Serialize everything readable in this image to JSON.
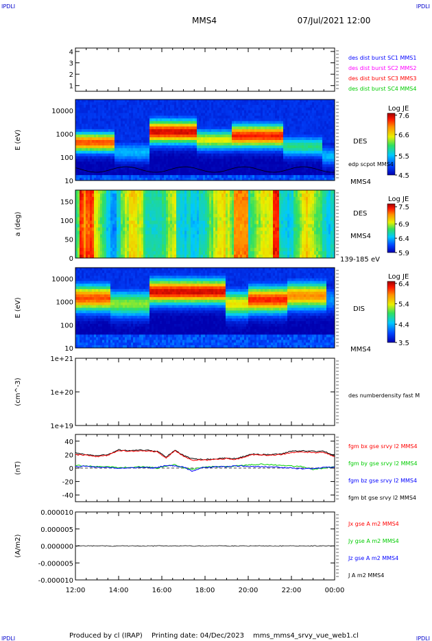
{
  "header": {
    "corner_tl": "IPDLI",
    "corner_tr": "IPDLI",
    "corner_bl": "IPDLI",
    "corner_br": "IPDLI",
    "title": "MMS4",
    "datetime": "07/Jul/2021 12:00"
  },
  "footer": {
    "produced_by": "Produced by cl (IRAP)",
    "printing_date": "Printing date: 04/Dec/2023",
    "filename": "mms_mms4_srvy_vue_web1.cl"
  },
  "colors": {
    "mms1": "#0000ff",
    "mms2": "#ff00ff",
    "mms3": "#ff0000",
    "mms4": "#00cc00",
    "bx": "#ff0000",
    "by": "#00cc00",
    "bz": "#0000ff",
    "bt": "#000000"
  },
  "x_axis": {
    "ticks": [
      "12:00",
      "14:00",
      "16:00",
      "18:00",
      "20:00",
      "22:00",
      "00:00"
    ]
  },
  "chart_data": [
    {
      "type": "scatter",
      "panel": "burst",
      "ylabel": "",
      "ylim": [
        0.5,
        4.3
      ],
      "yticks": [
        "4",
        "3",
        "2",
        "1"
      ],
      "legend": [
        {
          "label": "des dist burst SC1 MMS1",
          "color": "#0000ff"
        },
        {
          "label": "des dist burst SC2 MMS2",
          "color": "#ff00ff"
        },
        {
          "label": "des dist burst SC3 MMS3",
          "color": "#ff0000"
        },
        {
          "label": "des dist burst SC4 MMS4",
          "color": "#00cc00"
        }
      ]
    },
    {
      "type": "heatmap",
      "panel": "des_energy",
      "ylabel": "E (eV)",
      "yscale": "log",
      "ylim": [
        10,
        30000
      ],
      "yticks": [
        "10000",
        "1000",
        "100",
        "10"
      ],
      "right_labels": [
        "DES",
        "edp scpot MMS4",
        "MMS4"
      ],
      "colorbar": {
        "title": "Log JE",
        "ticks": [
          "7.6",
          "6.6",
          "5.5",
          "4.5"
        ],
        "range": [
          4.5,
          7.7
        ]
      }
    },
    {
      "type": "heatmap",
      "panel": "des_pitch",
      "ylabel": "a (deg)",
      "ylim": [
        0,
        180
      ],
      "yticks": [
        "150",
        "100",
        "50",
        "0"
      ],
      "right_labels": [
        "DES",
        "MMS4",
        "139-185 eV"
      ],
      "colorbar": {
        "title": "Log JE",
        "ticks": [
          "7.5",
          "6.9",
          "6.4",
          "5.9"
        ],
        "range": [
          5.9,
          7.6
        ]
      }
    },
    {
      "type": "heatmap",
      "panel": "dis_energy",
      "ylabel": "E (eV)",
      "yscale": "log",
      "ylim": [
        10,
        30000
      ],
      "yticks": [
        "10000",
        "1000",
        "100",
        "10"
      ],
      "right_labels": [
        "DIS",
        "MMS4"
      ],
      "colorbar": {
        "title": "Log JE",
        "ticks": [
          "6.4",
          "5.4",
          "4.4",
          "3.5"
        ],
        "range": [
          3.5,
          6.5
        ]
      }
    },
    {
      "type": "line",
      "panel": "density",
      "ylabel": "(cm^-3)",
      "yscale": "log",
      "ylim": [
        1e+19,
        1e+21
      ],
      "yticks": [
        "1e+21",
        "1e+20",
        "1e+19"
      ],
      "legend": [
        {
          "label": "des numberdensity fast M",
          "color": "#000000"
        }
      ]
    },
    {
      "type": "line",
      "panel": "bfield",
      "ylabel": "(nT)",
      "ylim": [
        -50,
        50
      ],
      "yticks": [
        "40",
        "20",
        "0",
        "-20",
        "-40"
      ],
      "legend": [
        {
          "label": "fgm bx gse srvy l2 MMS4",
          "color": "#ff0000"
        },
        {
          "label": "fgm by gse srvy l2 MMS4",
          "color": "#00cc00"
        },
        {
          "label": "fgm bz gse srvy l2 MMS4",
          "color": "#0000ff"
        },
        {
          "label": "fgm bt gse srvy l2 MMS4",
          "color": "#000000"
        }
      ],
      "x": [
        12.0,
        12.5,
        13.0,
        13.5,
        14.0,
        14.5,
        15.0,
        15.5,
        15.8,
        16.2,
        16.6,
        17.0,
        17.4,
        17.8,
        18.2,
        18.6,
        19.0,
        19.4,
        19.8,
        20.2,
        20.6,
        21.0,
        21.5,
        22.0,
        22.5,
        23.0,
        23.5,
        24.0
      ],
      "series": [
        {
          "name": "fgm bt gse srvy l2 MMS4",
          "values": [
            23,
            20,
            18,
            20,
            27,
            26,
            27,
            26,
            25,
            16,
            27,
            19,
            14,
            13,
            13,
            14,
            15,
            14,
            17,
            21,
            20,
            20,
            21,
            25,
            26,
            25,
            25,
            18
          ]
        },
        {
          "name": "fgm bx gse srvy l2 MMS4",
          "values": [
            20,
            19,
            17,
            19,
            26,
            25,
            26,
            25,
            24,
            15,
            26,
            18,
            12,
            12,
            12,
            13,
            14,
            13,
            16,
            20,
            19,
            19,
            20,
            23,
            24,
            23,
            23,
            17
          ]
        },
        {
          "name": "fgm by gse srvy l2 MMS4",
          "values": [
            4,
            3,
            2,
            2,
            1,
            1,
            2,
            1,
            0,
            3,
            5,
            0,
            -2,
            1,
            2,
            2,
            2,
            3,
            4,
            5,
            6,
            5,
            4,
            3,
            2,
            -2,
            0,
            2
          ]
        },
        {
          "name": "fgm bz gse srvy l2 MMS4",
          "values": [
            2,
            3,
            1,
            1,
            0,
            0,
            1,
            0,
            1,
            4,
            3,
            2,
            -5,
            0,
            1,
            2,
            2,
            3,
            3,
            2,
            2,
            2,
            1,
            0,
            -1,
            -1,
            1,
            2
          ]
        }
      ]
    },
    {
      "type": "line",
      "panel": "current",
      "ylabel": "(A/m2)",
      "ylim": [
        -1e-05,
        1e-05
      ],
      "yticks": [
        "0.000010",
        "0.000005",
        "0.000000",
        "-0.000005",
        "-0.000010"
      ],
      "legend": [
        {
          "label": "Jx gse A m2 MMS4",
          "color": "#ff0000"
        },
        {
          "label": "Jy gse A m2 MMS4",
          "color": "#00cc00"
        },
        {
          "label": "Jz gse A m2 MMS4",
          "color": "#0000ff"
        },
        {
          "label": "J A m2 MMS4",
          "color": "#000000"
        }
      ],
      "x": [
        12,
        14,
        16,
        18,
        20,
        22,
        24
      ],
      "series": [
        {
          "name": "J A m2 MMS4",
          "values": [
            0,
            0,
            0,
            0,
            0,
            0,
            0
          ]
        }
      ]
    }
  ]
}
